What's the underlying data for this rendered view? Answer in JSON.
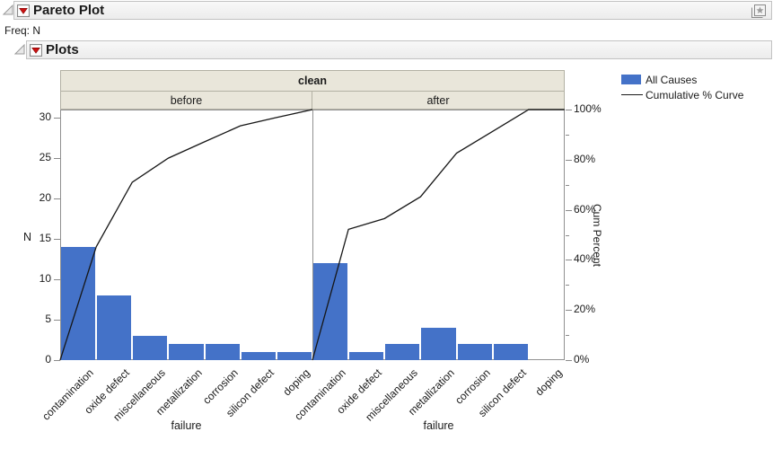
{
  "window": {
    "title": "Pareto Plot",
    "freq": "Freq: N",
    "section_title": "Plots"
  },
  "icons": {
    "disclosure": "open-disclosure-triangle",
    "red_triangle": "red-triangle-menu",
    "pin": "layered-window-star"
  },
  "legend": {
    "items": [
      {
        "swatch": "blue-square",
        "label": "All Causes"
      },
      {
        "swatch": "black-line",
        "label": "Cumulative % Curve"
      }
    ]
  },
  "chart_data": {
    "type": "bar",
    "title_band": "clean",
    "categories": [
      "contamination",
      "oxide defect",
      "miscellaneous",
      "metallization",
      "corrosion",
      "silicon defect",
      "doping"
    ],
    "series": [
      {
        "name": "before",
        "values": [
          14,
          8,
          3,
          2,
          2,
          1,
          1
        ],
        "cumulative_pct": [
          45.2,
          71.0,
          80.6,
          87.1,
          93.5,
          96.8,
          100
        ]
      },
      {
        "name": "after",
        "values": [
          12,
          1,
          2,
          4,
          2,
          2,
          0
        ],
        "cumulative_pct": [
          52.2,
          56.5,
          65.2,
          82.6,
          91.3,
          100,
          100
        ]
      }
    ],
    "xlabel": "failure",
    "ylabel_left": "N",
    "ylabel_right": "Cum Percent",
    "yticks_left": [
      "0",
      "5",
      "10",
      "15",
      "20",
      "25",
      "30"
    ],
    "yticks_right": [
      "0%",
      "20%",
      "40%",
      "60%",
      "80%",
      "100%"
    ],
    "ylim_left": [
      0,
      31
    ],
    "ylim_right_pct": [
      0,
      100
    ],
    "bar_color": "#4472c8",
    "curve_color": "#161616",
    "grid": false,
    "legend_position": "top-right"
  }
}
